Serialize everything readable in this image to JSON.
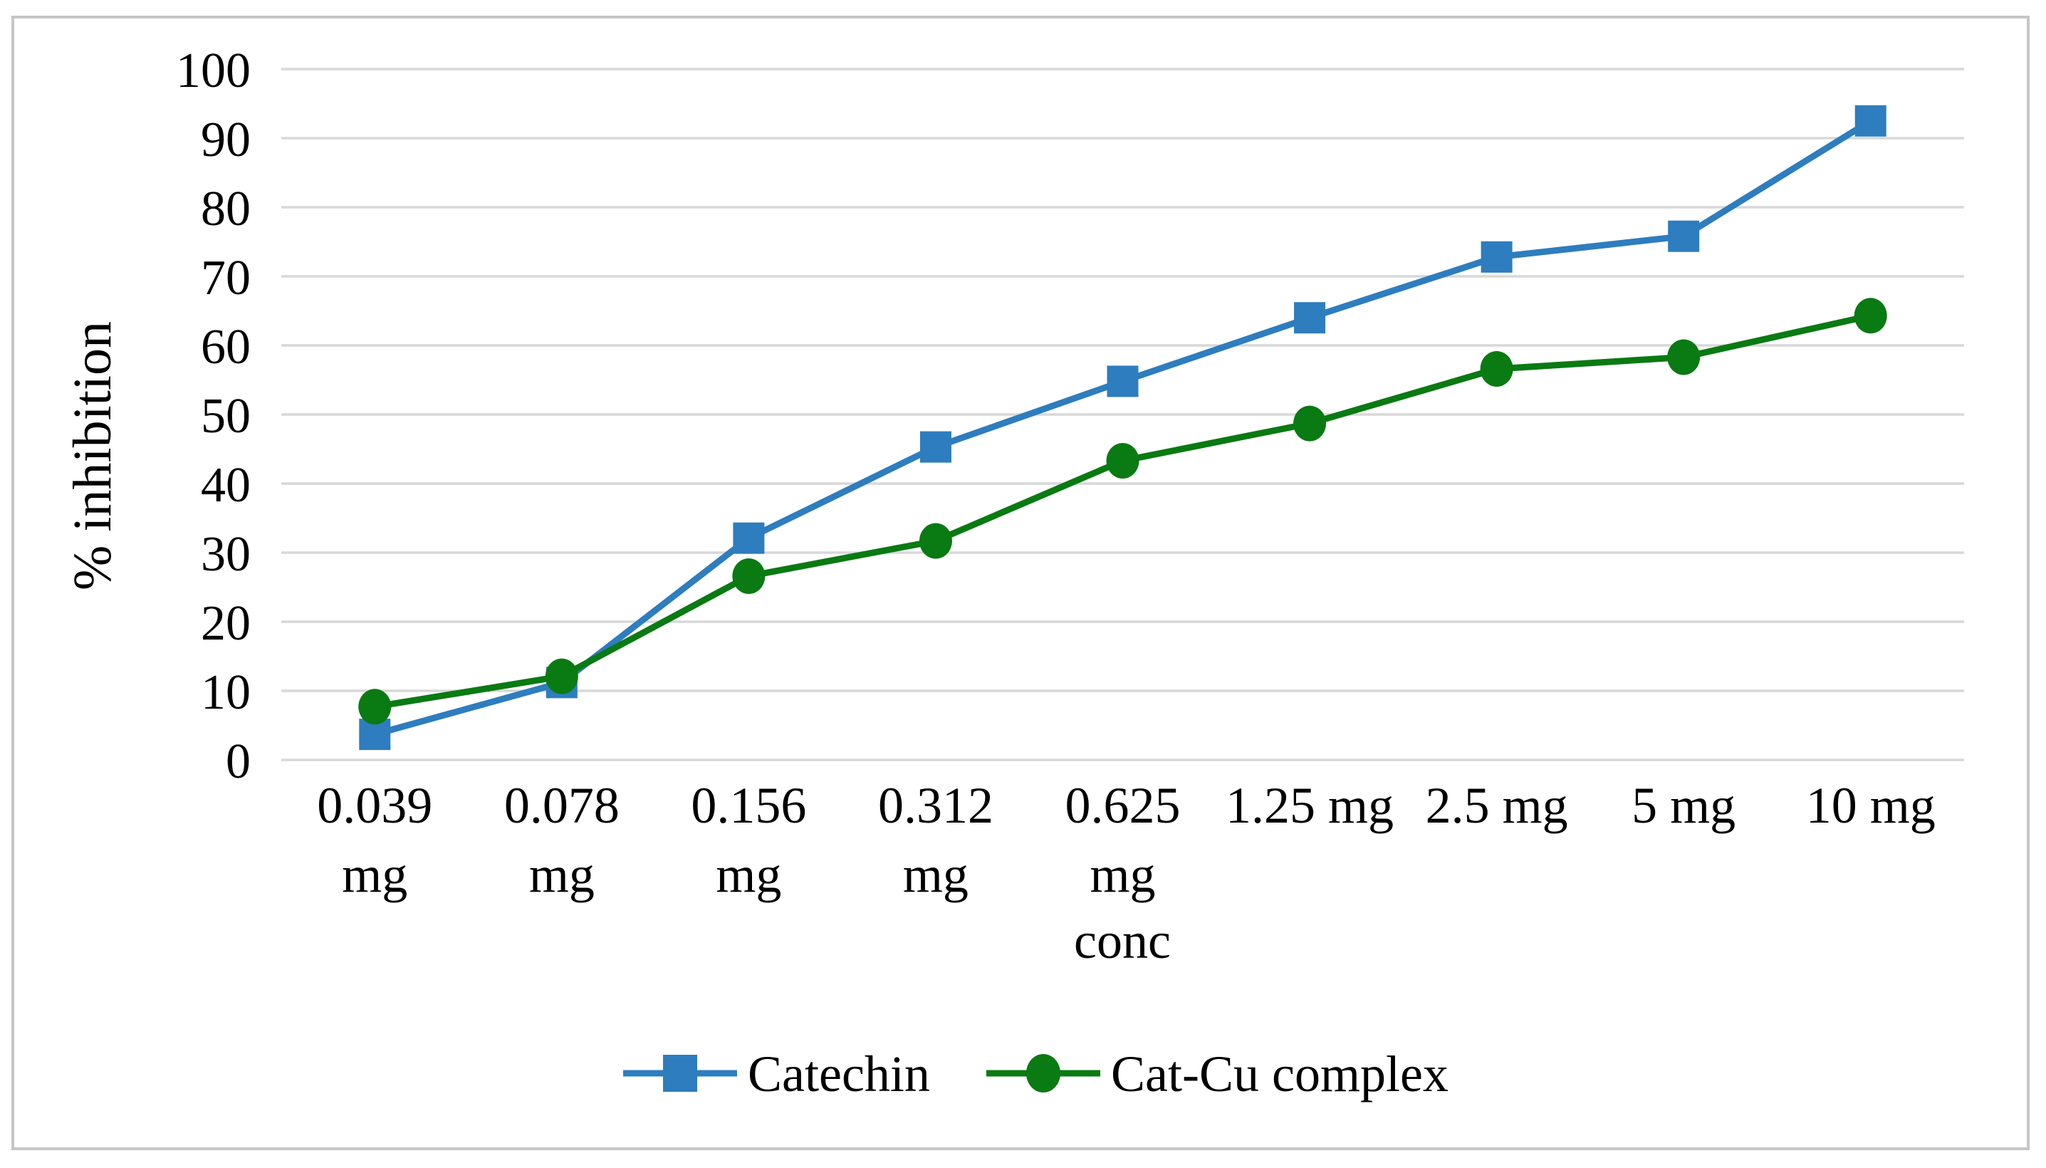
{
  "figure": {
    "border_color": "#C6C6C6",
    "background": "#FFFFFF"
  },
  "chart_data": {
    "type": "line",
    "title": "",
    "xlabel": "conc",
    "ylabel": "% inhibition",
    "categories": [
      "0.039 mg",
      "0.078 mg",
      "0.156 mg",
      "0.312 mg",
      "0.625 mg",
      "1.25 mg",
      "2.5 mg",
      "5 mg",
      "10 mg"
    ],
    "tick_lines": [
      [
        "0.039",
        "mg"
      ],
      [
        "0.078",
        "mg"
      ],
      [
        "0.156",
        "mg"
      ],
      [
        "0.312",
        "mg"
      ],
      [
        "0.625",
        "mg"
      ],
      [
        "1.25 mg"
      ],
      [
        "2.5 mg"
      ],
      [
        "5 mg"
      ],
      [
        "10 mg"
      ]
    ],
    "series": [
      {
        "name": "Catechin",
        "color": "#2E7DBE",
        "marker": "square",
        "values": [
          3.7,
          11.2,
          32.1,
          45.3,
          54.8,
          64.0,
          72.8,
          75.8,
          92.5
        ]
      },
      {
        "name": "Cat-Cu complex",
        "color": "#0A7A12",
        "marker": "circle",
        "values": [
          7.7,
          12.1,
          26.6,
          31.7,
          43.3,
          48.7,
          56.6,
          58.3,
          64.3
        ]
      }
    ],
    "ylim": [
      0,
      100
    ],
    "ytick_step": 10,
    "yticks": [
      "0",
      "10",
      "20",
      "30",
      "40",
      "50",
      "60",
      "70",
      "80",
      "90",
      "100"
    ],
    "grid": true,
    "gridline_color": "#D8D8D8",
    "legend_position": "bottom",
    "legend_entries": [
      "Catechin",
      "Cat-Cu complex"
    ]
  }
}
